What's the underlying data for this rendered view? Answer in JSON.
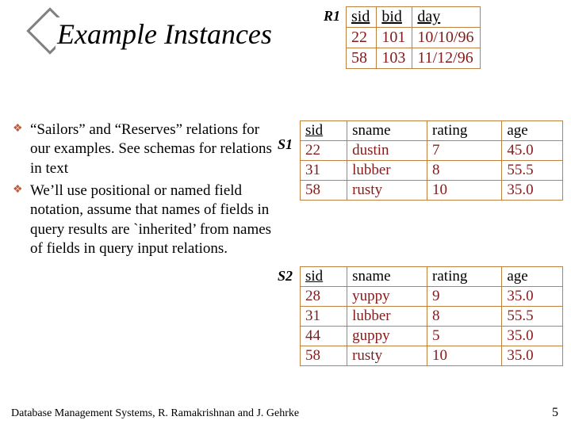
{
  "title": "Example Instances",
  "labels": {
    "r1": "R1",
    "s1": "S1",
    "s2": "S2"
  },
  "bullets": [
    "“Sailors” and “Reserves” relations for our examples. See schemas for relations in text",
    "We’ll use positional or named field notation, assume that names of fields in query results are `inherited’ from names of fields in query input relations."
  ],
  "r1": {
    "columns": [
      "sid",
      "bid",
      "day"
    ],
    "underline": [
      true,
      true,
      true
    ],
    "rows": [
      [
        "22",
        "101",
        "10/10/96"
      ],
      [
        "58",
        "103",
        "11/12/96"
      ]
    ],
    "border_color": "#c08040"
  },
  "s1": {
    "columns": [
      "sid",
      "sname",
      "rating",
      "age"
    ],
    "underline": [
      true,
      false,
      false,
      false
    ],
    "rows": [
      [
        "22",
        "dustin",
        "7",
        "45.0"
      ],
      [
        "31",
        "lubber",
        "8",
        "55.5"
      ],
      [
        "58",
        "rusty",
        "10",
        "35.0"
      ]
    ],
    "border_color": "#c08040"
  },
  "s2": {
    "columns": [
      "sid",
      "sname",
      "rating",
      "age"
    ],
    "underline": [
      true,
      false,
      false,
      false
    ],
    "rows": [
      [
        "28",
        "yuppy",
        "9",
        "35.0"
      ],
      [
        "31",
        "lubber",
        "8",
        "55.5"
      ],
      [
        "44",
        "guppy",
        "5",
        "35.0"
      ],
      [
        "58",
        "rusty",
        "10",
        "35.0"
      ]
    ],
    "border_color": "#c08040"
  },
  "footer": "Database Management Systems, R. Ramakrishnan and J. Gehrke",
  "pagenum": "5",
  "colors": {
    "data_text": "#831b1b",
    "bullet_icon": "#b85c3c",
    "diamond_border": "#808080"
  }
}
